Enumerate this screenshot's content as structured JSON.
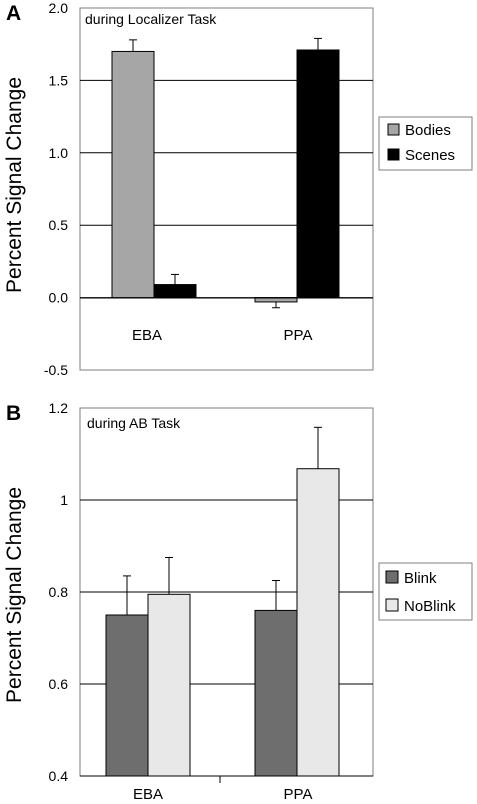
{
  "chart_data": [
    {
      "type": "bar",
      "panel": "A",
      "annotation": "during Localizer Task",
      "ylabel": "Percent Signal Change",
      "xlabel": "",
      "categories": [
        "EBA",
        "PPA"
      ],
      "series": [
        {
          "name": "Bodies",
          "values": [
            1.7,
            -0.03
          ],
          "errors": [
            0.08,
            0.04
          ],
          "color": "#a6a6a6"
        },
        {
          "name": "Scenes",
          "values": [
            0.09,
            1.71
          ],
          "errors": [
            0.07,
            0.08
          ],
          "color": "#000000"
        }
      ],
      "ylim": [
        -0.5,
        2.0
      ],
      "yticks": [
        -0.5,
        0.0,
        0.5,
        1.0,
        1.5,
        2.0
      ],
      "ytick_labels": [
        "-0.5",
        "0.0",
        "0.5",
        "1.0",
        "1.5",
        "2.0"
      ],
      "grid": true,
      "legend_position": "right"
    },
    {
      "type": "bar",
      "panel": "B",
      "annotation": "during AB Task",
      "ylabel": "Percent Signal Change",
      "xlabel": "",
      "categories": [
        "EBA",
        "PPA"
      ],
      "series": [
        {
          "name": "Blink",
          "values": [
            0.75,
            0.76
          ],
          "errors": [
            0.085,
            0.065
          ],
          "color": "#6e6e6e"
        },
        {
          "name": "NoBlink",
          "values": [
            0.795,
            1.068
          ],
          "errors": [
            0.08,
            0.09
          ],
          "color": "#e8e8e8"
        }
      ],
      "ylim": [
        0.4,
        1.2
      ],
      "yticks": [
        0.4,
        0.6,
        0.8,
        1.0,
        1.2
      ],
      "ytick_labels": [
        "0.4",
        "0.6",
        "0.8",
        "1",
        "1.2"
      ],
      "grid": true,
      "legend_position": "right"
    }
  ]
}
